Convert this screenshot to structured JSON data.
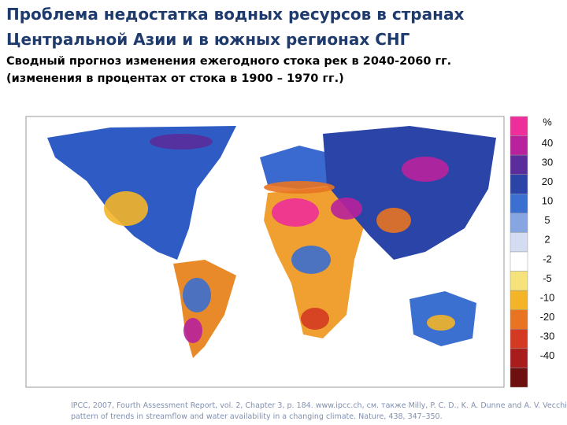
{
  "header": {
    "title": [
      "Проблема недостатка водных ресурсов в странах",
      "Центральной Азии и в южных регионах СНГ"
    ],
    "subtitle": [
      "Сводный прогноз изменения ежегодного стока рек в 2040-2060 гг.",
      "(изменения в процентах от стока в 1900 – 1970 гг.)"
    ]
  },
  "legend": {
    "unit": "%",
    "labels": [
      "40",
      "30",
      "20",
      "10",
      "5",
      "2",
      "-2",
      "-5",
      "-10",
      "-20",
      "-30",
      "-40"
    ],
    "colors": [
      "#ee2e9a",
      "#b8229c",
      "#5a2c9c",
      "#2a44a8",
      "#3b6fd0",
      "#86a6e2",
      "#d4dcf2",
      "#ffffff",
      "#f5e27a",
      "#f4b428",
      "#e87422",
      "#d43a22",
      "#a81c1c",
      "#6e1010"
    ]
  },
  "source": [
    "IPCC, 2007, Fourth Assessment Report, vol. 2, Chapter 3, p. 184. www.ipcc.ch, см. также Milly, P. C. D., K. A. Dunne and A. V. Vecchia, 2005: Global",
    "pattern of trends in streamflow and water availability in a changing climate. Nature, 438, 347–350."
  ]
}
